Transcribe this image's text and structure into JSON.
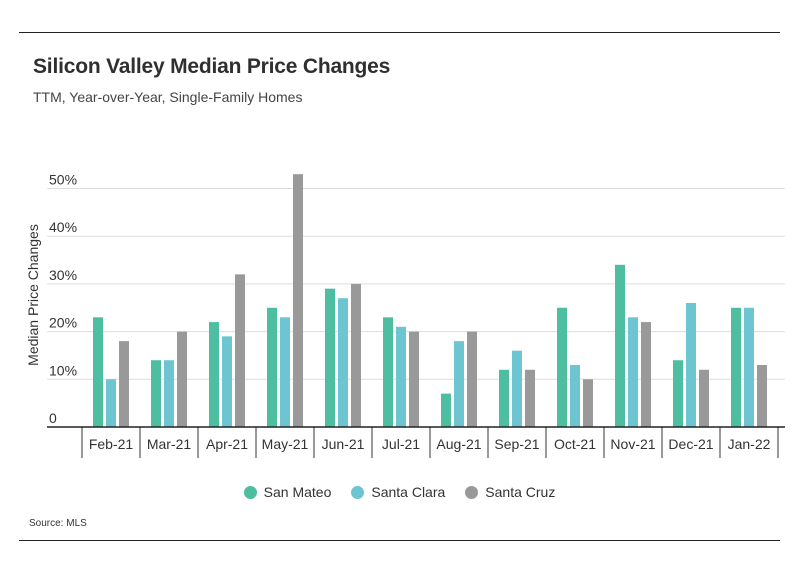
{
  "title": "Silicon Valley Median Price Changes",
  "subtitle": "TTM, Year-over-Year, Single-Family Homes",
  "source": "Source:  MLS",
  "colors": {
    "San Mateo": "#4dbfa0",
    "Santa Clara": "#6cc5d1",
    "Santa Cruz": "#999999"
  },
  "chart_data": {
    "type": "bar",
    "title": "Silicon Valley Median Price Changes",
    "subtitle": "TTM, Year-over-Year, Single-Family Homes",
    "ylabel": "Median Price Changes",
    "xlabel": "",
    "ylim": [
      0,
      55
    ],
    "yticks": [
      {
        "value": 0,
        "label": "0"
      },
      {
        "value": 10,
        "label": "10%"
      },
      {
        "value": 20,
        "label": "20%"
      },
      {
        "value": 30,
        "label": "30%"
      },
      {
        "value": 40,
        "label": "40%"
      },
      {
        "value": 50,
        "label": "50%"
      }
    ],
    "grid": true,
    "legend_position": "bottom",
    "categories": [
      "Feb-21",
      "Mar-21",
      "Apr-21",
      "May-21",
      "Jun-21",
      "Jul-21",
      "Aug-21",
      "Sep-21",
      "Oct-21",
      "Nov-21",
      "Dec-21",
      "Jan-22"
    ],
    "series": [
      {
        "name": "San Mateo",
        "values": [
          23,
          14,
          22,
          25,
          29,
          23,
          7,
          12,
          25,
          34,
          14,
          25
        ]
      },
      {
        "name": "Santa Clara",
        "values": [
          10,
          14,
          19,
          23,
          27,
          21,
          18,
          16,
          13,
          23,
          26,
          25
        ]
      },
      {
        "name": "Santa Cruz",
        "values": [
          18,
          20,
          32,
          53,
          30,
          20,
          20,
          12,
          10,
          22,
          12,
          13
        ]
      }
    ]
  }
}
